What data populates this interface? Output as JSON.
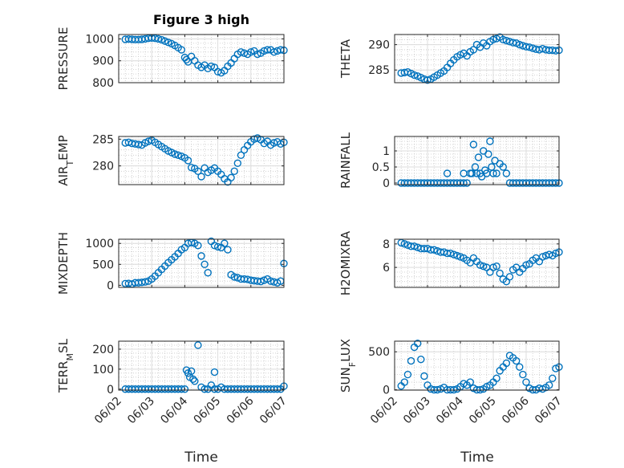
{
  "title": "Figure 3 high",
  "xlabel": "Time",
  "x_ticks": [
    "06/02",
    "06/03",
    "06/04",
    "06/05",
    "06/06",
    "06/07"
  ],
  "marker_color": "#0072BD",
  "chart_data": [
    {
      "type": "scatter",
      "marker": "circle",
      "grid": true,
      "ylabel": "PRESSURE",
      "xlim": [
        0,
        5
      ],
      "ylim": [
        800,
        1020
      ],
      "yticks": [
        800,
        900,
        1000
      ],
      "x": [
        0.2,
        0.3,
        0.4,
        0.5,
        0.6,
        0.7,
        0.8,
        0.9,
        1.0,
        1.1,
        1.2,
        1.3,
        1.4,
        1.5,
        1.6,
        1.7,
        1.8,
        1.9,
        2.0,
        2.05,
        2.1,
        2.2,
        2.3,
        2.4,
        2.5,
        2.6,
        2.7,
        2.8,
        2.9,
        3.0,
        3.1,
        3.2,
        3.3,
        3.4,
        3.5,
        3.6,
        3.7,
        3.8,
        3.9,
        4.0,
        4.1,
        4.2,
        4.3,
        4.4,
        4.5,
        4.6,
        4.7,
        4.8,
        4.9,
        5.0
      ],
      "y": [
        998,
        999,
        998,
        997,
        997,
        998,
        1000,
        1003,
        1004,
        1003,
        1000,
        996,
        990,
        984,
        978,
        970,
        960,
        950,
        915,
        905,
        895,
        920,
        900,
        880,
        870,
        880,
        865,
        875,
        870,
        850,
        845,
        855,
        875,
        890,
        910,
        930,
        940,
        935,
        930,
        940,
        945,
        930,
        935,
        945,
        950,
        950,
        940,
        945,
        950,
        948
      ]
    },
    {
      "type": "scatter",
      "marker": "circle",
      "grid": true,
      "ylabel": "THETA",
      "xlim": [
        0,
        5
      ],
      "ylim": [
        282.5,
        292
      ],
      "yticks": [
        285,
        290
      ],
      "x": [
        0.2,
        0.3,
        0.4,
        0.5,
        0.6,
        0.7,
        0.8,
        0.9,
        1.0,
        1.1,
        1.2,
        1.3,
        1.4,
        1.5,
        1.6,
        1.7,
        1.8,
        1.9,
        2.0,
        2.1,
        2.2,
        2.3,
        2.4,
        2.5,
        2.6,
        2.7,
        2.8,
        2.9,
        3.0,
        3.1,
        3.2,
        3.3,
        3.4,
        3.5,
        3.6,
        3.7,
        3.8,
        3.9,
        4.0,
        4.1,
        4.2,
        4.3,
        4.4,
        4.5,
        4.6,
        4.7,
        4.8,
        4.9,
        5.0
      ],
      "y": [
        284.4,
        284.5,
        284.6,
        284.3,
        284.0,
        283.8,
        283.5,
        283.2,
        283.0,
        283.2,
        283.6,
        284.0,
        284.4,
        284.8,
        285.5,
        286.3,
        287.0,
        287.6,
        288.0,
        288.3,
        287.8,
        288.6,
        289.0,
        290.0,
        289.5,
        290.3,
        289.8,
        290.6,
        291.0,
        291.2,
        291.5,
        291.0,
        290.8,
        290.6,
        290.4,
        290.3,
        290.0,
        289.8,
        289.6,
        289.5,
        289.3,
        289.1,
        289.0,
        289.2,
        289.0,
        288.9,
        288.9,
        288.8,
        288.9
      ]
    },
    {
      "type": "scatter",
      "marker": "circle",
      "grid": true,
      "ylabel": "AIR_TEMP",
      "xlim": [
        0,
        5
      ],
      "ylim": [
        276.5,
        285.5
      ],
      "yticks": [
        280,
        285
      ],
      "x": [
        0.2,
        0.3,
        0.4,
        0.5,
        0.6,
        0.7,
        0.8,
        0.9,
        1.0,
        1.1,
        1.2,
        1.3,
        1.4,
        1.5,
        1.6,
        1.7,
        1.8,
        1.9,
        2.0,
        2.1,
        2.2,
        2.3,
        2.4,
        2.5,
        2.6,
        2.7,
        2.8,
        2.9,
        3.0,
        3.1,
        3.2,
        3.3,
        3.4,
        3.5,
        3.6,
        3.7,
        3.8,
        3.9,
        4.0,
        4.1,
        4.2,
        4.3,
        4.4,
        4.5,
        4.6,
        4.7,
        4.8,
        4.9,
        5.0
      ],
      "y": [
        284.3,
        284.4,
        284.2,
        284.1,
        284.0,
        283.9,
        284.3,
        284.6,
        284.8,
        284.4,
        284.0,
        283.6,
        283.2,
        282.8,
        282.5,
        282.2,
        282.0,
        281.8,
        281.5,
        281.0,
        279.7,
        279.5,
        279.0,
        278.0,
        279.6,
        278.8,
        279.2,
        279.6,
        279.0,
        278.4,
        277.6,
        277.0,
        277.8,
        279.0,
        280.5,
        282.0,
        283.0,
        283.8,
        284.5,
        285.0,
        285.2,
        284.9,
        284.2,
        284.6,
        283.9,
        284.3,
        284.5,
        284.1,
        284.4
      ]
    },
    {
      "type": "scatter",
      "marker": "circle",
      "grid": true,
      "ylabel": "RAINFALL",
      "xlim": [
        0,
        5
      ],
      "ylim": [
        -0.05,
        1.45
      ],
      "yticks": [
        0,
        0.5,
        1
      ],
      "x": [
        0.2,
        0.3,
        0.4,
        0.5,
        0.6,
        0.7,
        0.8,
        0.9,
        1.0,
        1.1,
        1.2,
        1.3,
        1.4,
        1.5,
        1.6,
        1.7,
        1.8,
        1.9,
        2.0,
        2.1,
        2.2,
        2.3,
        2.35,
        2.4,
        2.45,
        2.5,
        2.55,
        2.6,
        2.65,
        2.7,
        2.75,
        2.8,
        2.85,
        2.9,
        2.95,
        3.0,
        3.05,
        3.1,
        3.2,
        3.3,
        3.4,
        3.5,
        3.6,
        3.7,
        3.8,
        3.9,
        4.0,
        4.1,
        4.2,
        4.3,
        4.4,
        4.5,
        4.6,
        4.7,
        4.8,
        4.9,
        5.0,
        2.1,
        1.6
      ],
      "y": [
        0,
        0,
        0,
        0,
        0,
        0,
        0,
        0,
        0,
        0,
        0,
        0,
        0,
        0,
        0,
        0,
        0,
        0,
        0,
        0,
        0,
        0.3,
        0.3,
        1.2,
        0.5,
        0.3,
        0.8,
        0.3,
        0.2,
        1.0,
        0.4,
        0.3,
        0.9,
        1.3,
        0.5,
        0.3,
        0.7,
        0.3,
        0.6,
        0.5,
        0.3,
        0,
        0,
        0,
        0,
        0,
        0,
        0,
        0,
        0,
        0,
        0,
        0,
        0,
        0,
        0,
        0,
        0.3,
        0.3
      ]
    },
    {
      "type": "scatter",
      "marker": "circle",
      "grid": true,
      "ylabel": "MIXDEPTH",
      "xlim": [
        0,
        5
      ],
      "ylim": [
        -50,
        1100
      ],
      "yticks": [
        0,
        500,
        1000
      ],
      "x": [
        0.2,
        0.3,
        0.4,
        0.5,
        0.6,
        0.7,
        0.8,
        0.9,
        1.0,
        1.1,
        1.2,
        1.3,
        1.4,
        1.5,
        1.6,
        1.7,
        1.8,
        1.9,
        2.0,
        2.1,
        2.2,
        2.3,
        2.4,
        2.5,
        2.6,
        2.7,
        2.8,
        2.9,
        3.0,
        3.1,
        3.2,
        3.3,
        3.4,
        3.5,
        3.6,
        3.7,
        3.8,
        3.9,
        4.0,
        4.1,
        4.2,
        4.3,
        4.4,
        4.5,
        4.6,
        4.7,
        4.8,
        4.9,
        5.0
      ],
      "y": [
        40,
        45,
        30,
        60,
        60,
        70,
        80,
        100,
        150,
        220,
        300,
        380,
        460,
        540,
        610,
        680,
        760,
        850,
        900,
        1000,
        1020,
        1000,
        950,
        700,
        500,
        300,
        1050,
        950,
        920,
        900,
        1000,
        850,
        250,
        200,
        180,
        150,
        150,
        140,
        120,
        110,
        100,
        90,
        120,
        150,
        100,
        80,
        60,
        100,
        520
      ]
    },
    {
      "type": "scatter",
      "marker": "circle",
      "grid": true,
      "ylabel": "H2OMIXRA",
      "xlim": [
        0,
        5
      ],
      "ylim": [
        4.3,
        8.4
      ],
      "yticks": [
        6,
        8
      ],
      "x": [
        0.2,
        0.3,
        0.4,
        0.5,
        0.6,
        0.7,
        0.8,
        0.9,
        1.0,
        1.1,
        1.2,
        1.3,
        1.4,
        1.5,
        1.6,
        1.7,
        1.8,
        1.9,
        2.0,
        2.1,
        2.2,
        2.3,
        2.4,
        2.5,
        2.6,
        2.7,
        2.8,
        2.9,
        3.0,
        3.1,
        3.2,
        3.3,
        3.4,
        3.5,
        3.6,
        3.7,
        3.8,
        3.9,
        4.0,
        4.1,
        4.2,
        4.3,
        4.4,
        4.5,
        4.6,
        4.7,
        4.8,
        4.9,
        5.0
      ],
      "y": [
        8.1,
        8.0,
        7.9,
        7.8,
        7.8,
        7.7,
        7.6,
        7.6,
        7.6,
        7.5,
        7.5,
        7.4,
        7.3,
        7.3,
        7.2,
        7.2,
        7.1,
        7.0,
        6.9,
        6.8,
        6.6,
        6.4,
        6.8,
        6.5,
        6.2,
        6.1,
        6.0,
        5.6,
        6.0,
        6.1,
        5.5,
        5.0,
        4.8,
        5.2,
        5.8,
        6.0,
        5.6,
        5.9,
        6.2,
        6.3,
        6.6,
        6.8,
        6.5,
        6.9,
        7.0,
        7.1,
        7.0,
        7.2,
        7.3
      ]
    },
    {
      "type": "scatter",
      "marker": "circle",
      "grid": true,
      "ylabel": "TERR_MSL",
      "xlim": [
        0,
        5
      ],
      "ylim": [
        -5,
        240
      ],
      "yticks": [
        0,
        100,
        200
      ],
      "x": [
        0.2,
        0.3,
        0.4,
        0.5,
        0.6,
        0.7,
        0.8,
        0.9,
        1.0,
        1.1,
        1.2,
        1.3,
        1.4,
        1.5,
        1.6,
        1.7,
        1.8,
        1.9,
        2.0,
        2.05,
        2.1,
        2.15,
        2.2,
        2.25,
        2.3,
        2.4,
        2.5,
        2.6,
        2.7,
        2.8,
        2.9,
        3.0,
        3.1,
        3.2,
        3.3,
        3.4,
        3.5,
        3.6,
        3.7,
        3.8,
        3.9,
        4.0,
        4.1,
        4.2,
        4.3,
        4.4,
        4.5,
        4.6,
        4.7,
        4.8,
        4.9,
        5.0,
        2.9
      ],
      "y": [
        0,
        0,
        0,
        0,
        0,
        0,
        0,
        0,
        0,
        0,
        0,
        0,
        0,
        0,
        0,
        0,
        0,
        0,
        0,
        95,
        80,
        60,
        90,
        50,
        40,
        220,
        10,
        0,
        0,
        20,
        0,
        0,
        10,
        0,
        0,
        0,
        0,
        0,
        0,
        0,
        0,
        0,
        0,
        0,
        0,
        0,
        0,
        0,
        0,
        0,
        0,
        15,
        85
      ]
    },
    {
      "type": "scatter",
      "marker": "circle",
      "grid": true,
      "ylabel": "SUN_FLUX",
      "xlim": [
        0,
        5
      ],
      "ylim": [
        -5,
        640
      ],
      "yticks": [
        0,
        500
      ],
      "x": [
        0.2,
        0.3,
        0.4,
        0.5,
        0.6,
        0.7,
        0.8,
        0.9,
        1.0,
        1.1,
        1.2,
        1.3,
        1.4,
        1.5,
        1.6,
        1.7,
        1.8,
        1.9,
        2.0,
        2.1,
        2.2,
        2.3,
        2.4,
        2.5,
        2.6,
        2.7,
        2.8,
        2.9,
        3.0,
        3.1,
        3.2,
        3.3,
        3.4,
        3.5,
        3.6,
        3.7,
        3.8,
        3.9,
        4.0,
        4.1,
        4.2,
        4.3,
        4.4,
        4.5,
        4.6,
        4.7,
        4.8,
        4.9,
        5.0
      ],
      "y": [
        50,
        100,
        200,
        380,
        560,
        610,
        400,
        180,
        60,
        10,
        0,
        0,
        10,
        30,
        0,
        0,
        0,
        10,
        40,
        80,
        60,
        100,
        20,
        0,
        0,
        10,
        40,
        60,
        100,
        150,
        250,
        300,
        350,
        450,
        420,
        380,
        300,
        200,
        100,
        20,
        0,
        0,
        20,
        10,
        30,
        60,
        150,
        280,
        300
      ]
    }
  ]
}
